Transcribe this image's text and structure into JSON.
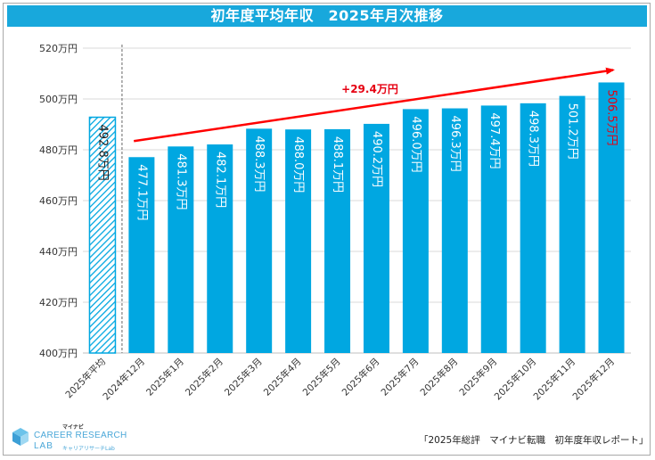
{
  "title": "初年度平均年収　2025年月次推移",
  "source": "「2025年総評　マイナビ転職　初年度年収レポート」",
  "logo": {
    "top": "マイナビ",
    "main": "CAREER RESEARCH",
    "lab": "LAB",
    "sub": "キャリアリサーチLab"
  },
  "colors": {
    "bar": "#00a7e1",
    "title_bg": "#18a8dc",
    "arrow": "#ff0000",
    "highlight_label": "#e60012",
    "hatch": "#00a7e1"
  },
  "chart_data": {
    "type": "bar",
    "title": "初年度平均年収　2025年月次推移",
    "ylabel": "",
    "xlabel": "",
    "ylim": [
      400,
      520
    ],
    "y_ticks": [
      400,
      420,
      440,
      460,
      480,
      500,
      520
    ],
    "y_tick_labels": [
      "400万円",
      "420万円",
      "440万円",
      "460万円",
      "480万円",
      "500万円",
      "520万円"
    ],
    "categories": [
      "2025年平均",
      "2024年12月",
      "2025年1月",
      "2025年2月",
      "2025年3月",
      "2025年4月",
      "2025年5月",
      "2025年6月",
      "2025年7月",
      "2025年8月",
      "2025年9月",
      "2025年10月",
      "2025年11月",
      "2025年12月"
    ],
    "values": [
      492.8,
      477.1,
      481.3,
      482.1,
      488.3,
      488.0,
      488.1,
      490.2,
      496.0,
      496.3,
      497.4,
      498.3,
      501.2,
      506.5
    ],
    "value_labels": [
      "492.8万円",
      "477.1万円",
      "481.3万円",
      "482.1万円",
      "488.3万円",
      "488.0万円",
      "488.1万円",
      "490.2万円",
      "496.0万円",
      "496.3万円",
      "497.4万円",
      "498.3万円",
      "501.2万円",
      "506.5万円"
    ],
    "annotation": "+29.4万円",
    "hatched_index": 0,
    "highlight_index": 13
  }
}
